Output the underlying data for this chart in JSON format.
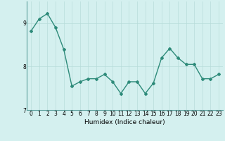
{
  "x": [
    0,
    1,
    2,
    3,
    4,
    5,
    6,
    7,
    8,
    9,
    10,
    11,
    12,
    13,
    14,
    15,
    16,
    17,
    18,
    19,
    20,
    21,
    22,
    23
  ],
  "y": [
    8.82,
    9.1,
    9.22,
    8.9,
    8.4,
    7.55,
    7.65,
    7.72,
    7.72,
    7.82,
    7.65,
    7.38,
    7.65,
    7.65,
    7.38,
    7.62,
    8.2,
    8.42,
    8.2,
    8.05,
    8.05,
    7.72,
    7.72,
    7.82
  ],
  "line_color": "#2e8b7a",
  "marker": "D",
  "marker_size": 2.0,
  "linewidth": 1.0,
  "xlabel": "Humidex (Indice chaleur)",
  "xlim": [
    -0.5,
    23.5
  ],
  "ylim": [
    7.0,
    9.5
  ],
  "yticks": [
    7,
    8,
    9
  ],
  "xticks": [
    0,
    1,
    2,
    3,
    4,
    5,
    6,
    7,
    8,
    9,
    10,
    11,
    12,
    13,
    14,
    15,
    16,
    17,
    18,
    19,
    20,
    21,
    22,
    23
  ],
  "bg_color": "#d4f0ef",
  "grid_color": "#b8dcda",
  "tick_fontsize": 5.5,
  "xlabel_fontsize": 6.5
}
